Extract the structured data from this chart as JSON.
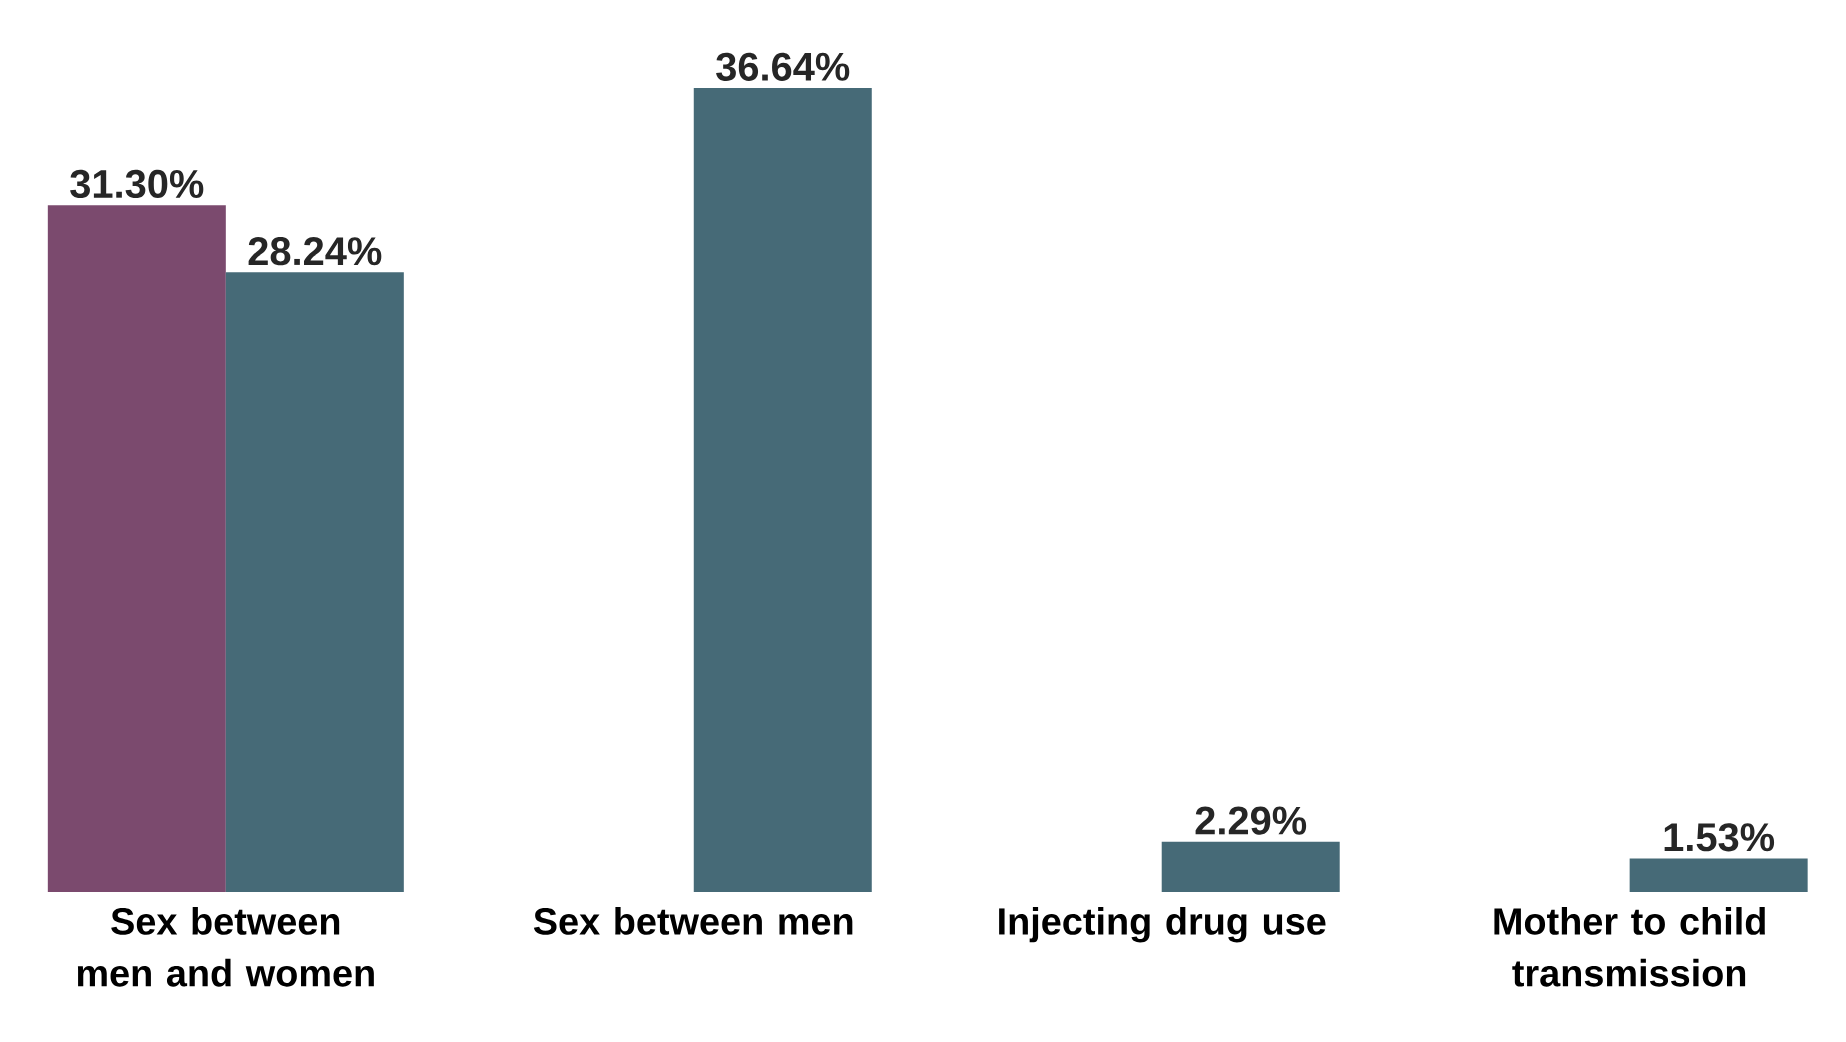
{
  "chart_data": {
    "type": "bar",
    "categories": [
      "Sex between men and women",
      "Sex between men",
      "Injecting drug use",
      "Mother to child transmission"
    ],
    "series": [
      {
        "color": "#7b4a6e",
        "values": [
          31.3,
          null,
          null,
          null
        ],
        "value_labels": [
          "31.30%",
          null,
          null,
          null
        ]
      },
      {
        "color": "#466a77",
        "values": [
          28.24,
          36.64,
          2.29,
          1.53
        ],
        "value_labels": [
          "28.24%",
          "36.64%",
          "2.29%",
          "1.53%"
        ]
      }
    ]
  }
}
